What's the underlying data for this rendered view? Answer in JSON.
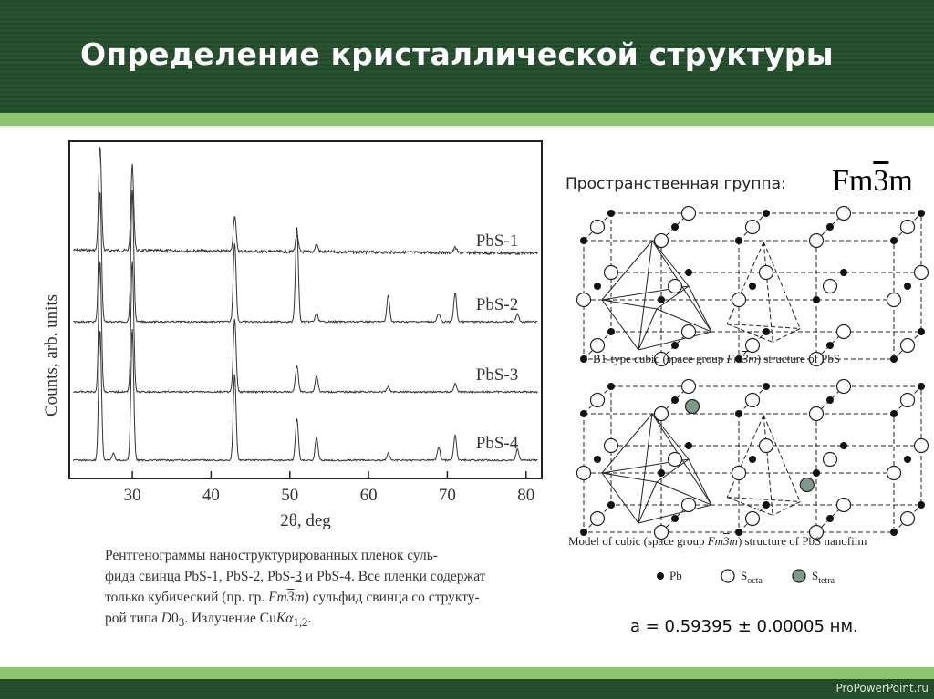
{
  "slide": {
    "title": "Определение кристаллической структуры",
    "footer": "ProPowerPoint.ru"
  },
  "chart_data": {
    "type": "line",
    "xlabel": "2θ, deg",
    "ylabel": "Counts, arb. units",
    "xlim": [
      22,
      82
    ],
    "xticks": [
      "30",
      "40",
      "50",
      "60",
      "70",
      "80"
    ],
    "series": [
      {
        "name": "PbS-1",
        "peaks": [
          [
            25.9,
            1.0
          ],
          [
            30.0,
            0.82
          ],
          [
            43.0,
            0.34
          ],
          [
            50.9,
            0.16
          ],
          [
            53.4,
            0.07
          ],
          [
            71.0,
            0.05
          ]
        ]
      },
      {
        "name": "PbS-2",
        "peaks": [
          [
            25.9,
            1.0
          ],
          [
            30.0,
            1.0
          ],
          [
            43.0,
            0.6
          ],
          [
            50.9,
            0.72
          ],
          [
            53.4,
            0.06
          ],
          [
            62.5,
            0.2
          ],
          [
            68.9,
            0.06
          ],
          [
            71.0,
            0.22
          ],
          [
            78.9,
            0.06
          ]
        ]
      },
      {
        "name": "PbS-3",
        "peaks": [
          [
            25.9,
            1.0
          ],
          [
            30.0,
            1.0
          ],
          [
            43.0,
            0.55
          ],
          [
            50.9,
            0.2
          ],
          [
            53.4,
            0.12
          ],
          [
            62.5,
            0.04
          ],
          [
            71.0,
            0.06
          ]
        ]
      },
      {
        "name": "PbS-4",
        "peaks": [
          [
            25.9,
            1.0
          ],
          [
            27.6,
            0.05
          ],
          [
            30.0,
            1.0
          ],
          [
            43.0,
            0.65
          ],
          [
            50.9,
            0.32
          ],
          [
            53.4,
            0.17
          ],
          [
            62.5,
            0.05
          ],
          [
            68.9,
            0.1
          ],
          [
            71.0,
            0.19
          ],
          [
            78.9,
            0.08
          ]
        ]
      }
    ]
  },
  "caption": {
    "line1": "Рентгенограммы наноструктурированных пленок суль-",
    "line2_a": "фида свинца PbS-1, PbS-2, PbS-",
    "line2_b": "3",
    "line2_c": " и PbS-4. Все пленки содержат",
    "line3_a": "только кубический (пр. гр. ",
    "line3_sym": "Fm",
    "line3_bar": "3",
    "line3_m": "m",
    "line3_b": ") сульфид свинца со структу-",
    "line4_a": "рой типа ",
    "line4_d": "D",
    "line4_sub": "0",
    "line4_sub2": "3",
    "line4_b": ". Излучение Cu",
    "line4_k": "K",
    "line4_alpha": "α",
    "line4_sub3": "1,2",
    "line4_c": "."
  },
  "structure": {
    "space_group_label": "Пространственная группа:",
    "space_group_F": "Fm",
    "space_group_bar": "3",
    "space_group_m": "m",
    "caption_top_a": "B1-type cubic (space group ",
    "caption_top_sym": "Fm",
    "caption_top_bar": "3",
    "caption_top_m": "m",
    "caption_top_b": ") structure of PbS",
    "caption_bottom_a": "Model of cubic (space group ",
    "caption_bottom_sym": "Fm",
    "caption_bottom_bar": "3",
    "caption_bottom_m": "m",
    "caption_bottom_b": ") structure of PbS nanofilm",
    "legend_pb": "Pb",
    "legend_s": "S",
    "legend_octa": "octa",
    "legend_tetra": "tetra",
    "colors": {
      "pb": "#111111",
      "s_octa": "#ffffff",
      "s_tetra": "#7f9a8a"
    },
    "lattice_parameter": "a = 0.59395 ± 0.00005 нм."
  }
}
